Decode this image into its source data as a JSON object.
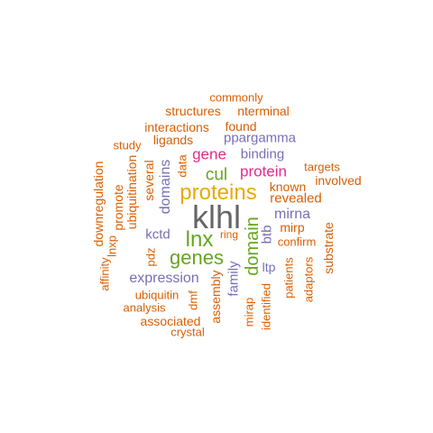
{
  "palette": {
    "orange": "#d95f02",
    "purple": "#7570b3",
    "magenta": "#e7298a",
    "green": "#66a61e",
    "gold": "#e6ab02",
    "gray": "#666666"
  },
  "words": [
    {
      "text": "klhl",
      "color": "gray"
    },
    {
      "text": "proteins",
      "color": "gold"
    },
    {
      "text": "lnx",
      "color": "green"
    },
    {
      "text": "genes",
      "color": "green"
    },
    {
      "text": "domain",
      "color": "green"
    },
    {
      "text": "cul",
      "color": "green"
    },
    {
      "text": "protein",
      "color": "magenta"
    },
    {
      "text": "gene",
      "color": "magenta"
    },
    {
      "text": "expression",
      "color": "purple"
    },
    {
      "text": "mirna",
      "color": "purple"
    },
    {
      "text": "domains",
      "color": "purple"
    },
    {
      "text": "binding",
      "color": "purple"
    },
    {
      "text": "ppargamma",
      "color": "purple"
    },
    {
      "text": "family",
      "color": "purple"
    },
    {
      "text": "kctd",
      "color": "purple"
    },
    {
      "text": "btb",
      "color": "purple"
    },
    {
      "text": "ltp",
      "color": "purple"
    },
    {
      "text": "revealed",
      "color": "orange"
    },
    {
      "text": "known",
      "color": "orange"
    },
    {
      "text": "mirp",
      "color": "orange"
    },
    {
      "text": "confirm",
      "color": "orange"
    },
    {
      "text": "involved",
      "color": "orange"
    },
    {
      "text": "targets",
      "color": "orange"
    },
    {
      "text": "ring",
      "color": "orange"
    },
    {
      "text": "commonly",
      "color": "orange"
    },
    {
      "text": "structures",
      "color": "orange"
    },
    {
      "text": "nterminal",
      "color": "orange"
    },
    {
      "text": "interactions",
      "color": "orange"
    },
    {
      "text": "found",
      "color": "orange"
    },
    {
      "text": "ligands",
      "color": "orange"
    },
    {
      "text": "study",
      "color": "orange"
    },
    {
      "text": "data",
      "color": "orange"
    },
    {
      "text": "several",
      "color": "orange"
    },
    {
      "text": "ubiquitination",
      "color": "orange"
    },
    {
      "text": "promote",
      "color": "orange"
    },
    {
      "text": "lnxp",
      "color": "orange"
    },
    {
      "text": "downregulation",
      "color": "orange"
    },
    {
      "text": "affinity",
      "color": "orange"
    },
    {
      "text": "pdz",
      "color": "orange"
    },
    {
      "text": "ubiquitin",
      "color": "orange"
    },
    {
      "text": "dmf",
      "color": "orange"
    },
    {
      "text": "assembly",
      "color": "orange"
    },
    {
      "text": "analysis",
      "color": "orange"
    },
    {
      "text": "associated",
      "color": "orange"
    },
    {
      "text": "crystal",
      "color": "orange"
    },
    {
      "text": "mirap",
      "color": "orange"
    },
    {
      "text": "identified",
      "color": "orange"
    },
    {
      "text": "patients",
      "color": "orange"
    },
    {
      "text": "adaptors",
      "color": "orange"
    },
    {
      "text": "substrate",
      "color": "orange"
    }
  ]
}
